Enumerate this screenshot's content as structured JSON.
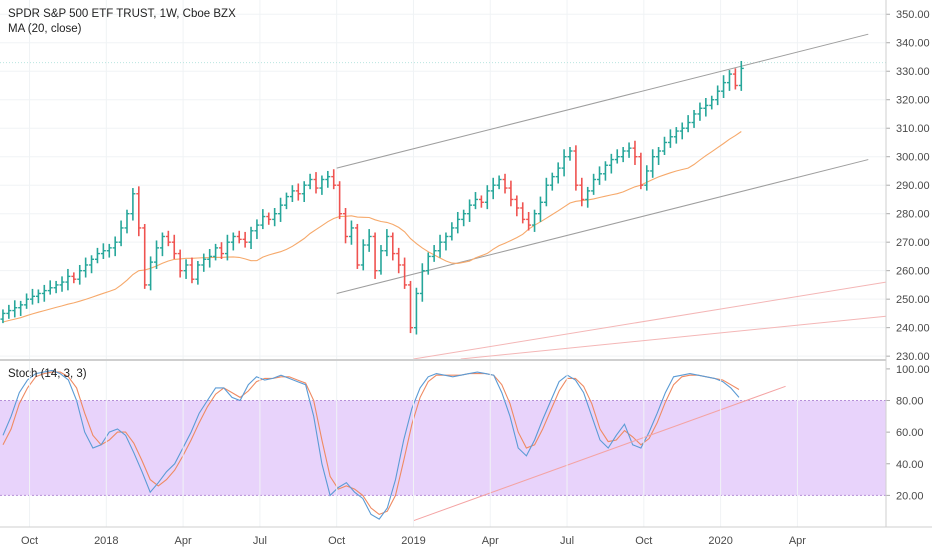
{
  "chart_data": [
    {
      "type": "bar",
      "subtype": "ohlc",
      "title": "SPDR S&P 500 ETF TRUST, 1W, Cboe BZX",
      "indicator_label": "MA (20, close)",
      "ylim": [
        229,
        355
      ],
      "yticks": [
        "230.00",
        "240.00",
        "250.00",
        "260.00",
        "270.00",
        "280.00",
        "290.00",
        "300.00",
        "310.00",
        "320.00",
        "330.00",
        "340.00",
        "350.00"
      ],
      "xticks": [
        {
          "label": "Oct",
          "week": 5
        },
        {
          "label": "2018",
          "week": 18
        },
        {
          "label": "Apr",
          "week": 31
        },
        {
          "label": "Jul",
          "week": 44
        },
        {
          "label": "Oct",
          "week": 57
        },
        {
          "label": "2019",
          "week": 70
        },
        {
          "label": "Apr",
          "week": 83
        },
        {
          "label": "Jul",
          "week": 96
        },
        {
          "label": "Oct",
          "week": 109
        },
        {
          "label": "2020",
          "week": 122
        },
        {
          "label": "Apr",
          "week": 135
        }
      ],
      "weeks_total": 150,
      "start_price": 243,
      "closes": [
        245,
        246,
        247,
        248,
        250,
        251,
        252,
        253,
        254,
        255,
        256,
        258,
        257,
        260,
        262,
        264,
        266,
        267,
        268,
        270,
        275,
        280,
        287,
        275,
        255,
        263,
        268,
        272,
        270,
        266,
        260,
        262,
        257,
        262,
        264,
        265,
        268,
        266,
        270,
        272,
        271,
        270,
        274,
        276,
        279,
        278,
        280,
        283,
        286,
        288,
        287,
        290,
        292,
        289,
        292,
        293,
        290,
        280,
        272,
        275,
        262,
        269,
        272,
        260,
        267,
        272,
        266,
        262,
        255,
        240,
        252,
        260,
        265,
        267,
        270,
        272,
        275,
        278,
        280,
        283,
        285,
        284,
        288,
        290,
        292,
        289,
        285,
        282,
        278,
        276,
        280,
        284,
        290,
        293,
        296,
        300,
        302,
        290,
        285,
        288,
        292,
        294,
        297,
        299,
        300,
        302,
        303,
        300,
        290,
        295,
        300,
        302,
        305,
        307,
        309,
        310,
        312,
        315,
        317,
        318,
        320,
        323,
        326,
        329,
        325,
        331
      ],
      "ma_label": "MA (20, close)",
      "channel": {
        "x1": 57,
        "y1": 296,
        "x2": 147,
        "y2": 343,
        "lower_offset": -44
      },
      "channel2": [
        {
          "x1": 70,
          "y1": 229,
          "x2": 150,
          "y2": 256
        },
        {
          "x1": 78,
          "y1": 229,
          "x2": 150,
          "y2": 244
        }
      ],
      "price_line": 333,
      "colors": {
        "up": "#26a69a",
        "down": "#ef5350",
        "ma": "#f6a96b",
        "channel": "#9e9e9e",
        "channel2": "#f4b6b6"
      }
    },
    {
      "type": "line",
      "title": "Stoch (14, 3, 3)",
      "ylim": [
        0,
        105
      ],
      "yticks": [
        "20.00",
        "40.00",
        "60.00",
        "80.00",
        "100.00"
      ],
      "band": [
        20,
        80
      ],
      "k": [
        58,
        70,
        85,
        93,
        97,
        98,
        99,
        97,
        93,
        80,
        60,
        50,
        52,
        60,
        62,
        58,
        47,
        35,
        22,
        28,
        35,
        40,
        50,
        60,
        72,
        80,
        88,
        88,
        82,
        80,
        90,
        95,
        93,
        94,
        96,
        94,
        92,
        90,
        70,
        40,
        20,
        25,
        28,
        22,
        18,
        8,
        5,
        12,
        30,
        55,
        75,
        88,
        95,
        97,
        96,
        95,
        96,
        97,
        98,
        97,
        96,
        85,
        70,
        50,
        45,
        55,
        68,
        80,
        92,
        96,
        93,
        85,
        70,
        55,
        50,
        58,
        65,
        52,
        50,
        60,
        72,
        85,
        95,
        96,
        97,
        96,
        95,
        94,
        92,
        88,
        82
      ],
      "d": [
        52,
        62,
        78,
        88,
        95,
        97,
        98,
        98,
        95,
        88,
        72,
        58,
        52,
        55,
        60,
        60,
        53,
        42,
        30,
        26,
        30,
        36,
        45,
        55,
        66,
        76,
        84,
        88,
        85,
        82,
        86,
        92,
        94,
        94,
        95,
        95,
        93,
        91,
        80,
        55,
        32,
        24,
        26,
        24,
        20,
        12,
        8,
        10,
        20,
        42,
        65,
        82,
        92,
        96,
        96,
        96,
        96,
        97,
        97,
        97,
        96,
        90,
        78,
        60,
        50,
        52,
        62,
        74,
        86,
        94,
        94,
        89,
        78,
        62,
        54,
        55,
        61,
        57,
        52,
        56,
        66,
        79,
        90,
        95,
        96,
        96,
        95,
        94,
        93,
        90,
        87
      ],
      "trendline": {
        "x1": 70,
        "y1": 4,
        "x2": 133,
        "y2": 89
      },
      "colors": {
        "k": "#5b9bd5",
        "d": "#ef8a62",
        "band": "#e8d3fb",
        "band_line": "#b58fd8",
        "trend": "#f4a3a3"
      }
    }
  ]
}
